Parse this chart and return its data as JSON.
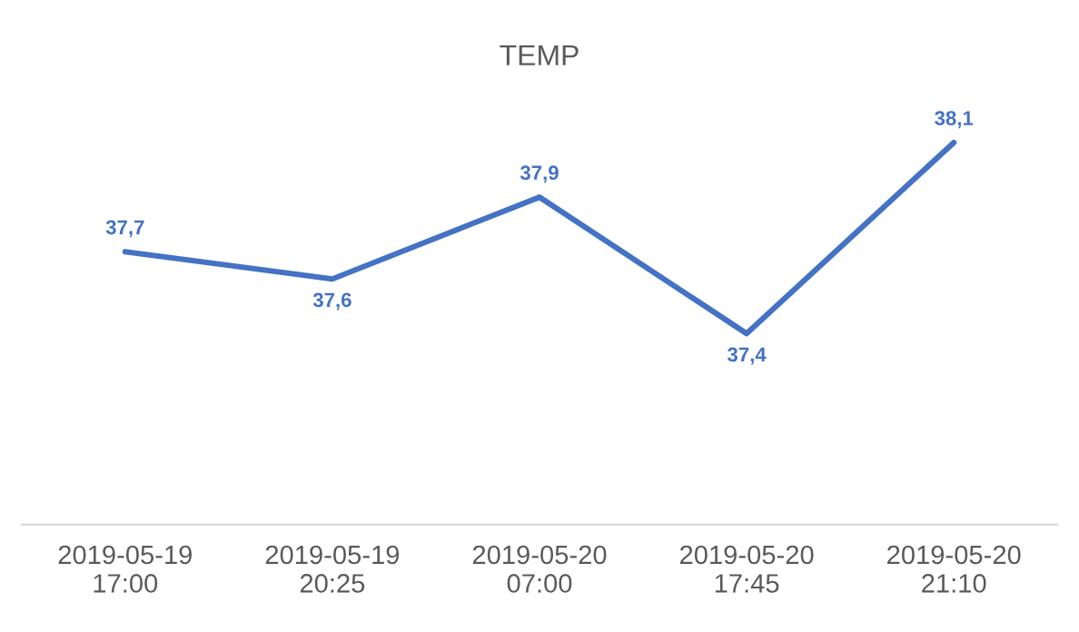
{
  "chart_data": {
    "type": "line",
    "title": "TEMP",
    "categories": [
      "2019-05-19\n17:00",
      "2019-05-19\n20:25",
      "2019-05-20\n07:00",
      "2019-05-20\n17:45",
      "2019-05-20\n21:10"
    ],
    "series": [
      {
        "color": "#4472c4",
        "values": [
          37.7,
          37.6,
          37.9,
          37.4,
          38.1
        ],
        "value_labels": [
          "37,7",
          "37,6",
          "37,9",
          "37,4",
          "38,1"
        ]
      }
    ],
    "tick_labels": "x",
    "grid": false,
    "line_style": "solid"
  }
}
